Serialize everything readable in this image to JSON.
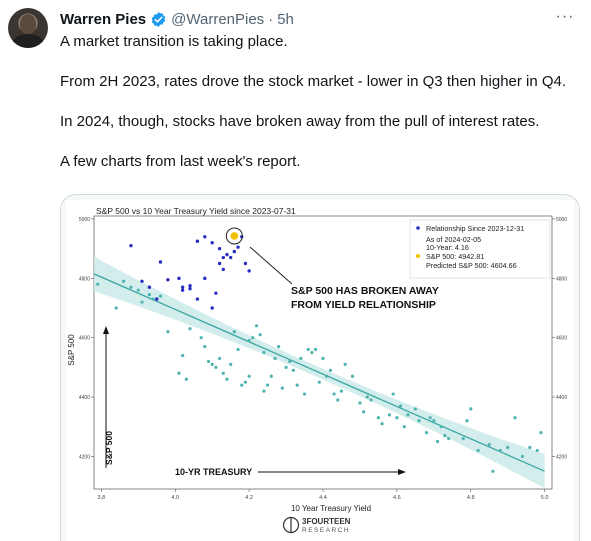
{
  "author": {
    "name": "Warren Pies",
    "handle": "@WarrenPies",
    "separator": "·",
    "time": "5h",
    "more_label": "···"
  },
  "tweet": {
    "paragraphs": [
      "A market transition is taking place.",
      "From 2H 2023, rates drove the stock market - lower in Q3 then higher in Q4.",
      "In 2024, though, stocks have broken away from the pull of interest rates.",
      "A few charts from last week's report."
    ]
  },
  "colors": {
    "verified": "#1d9bf0",
    "teal_points": "#4fb3b0",
    "navy_points": "#2a2ec0",
    "highlight": "#f2c200",
    "regression": "#3aa6a2",
    "band": "#c7e8e6"
  },
  "chart_data": {
    "type": "scatter",
    "title": "S&P 500 vs 10 Year Treasury Yield since 2023-07-31",
    "xlabel": "10 Year Treasury Yield",
    "ylabel": "S&P 500",
    "xlim": [
      3.78,
      5.02
    ],
    "ylim": [
      4090,
      5010
    ],
    "xticks": [
      "3.8",
      "4.0",
      "4.2",
      "4.4",
      "4.6",
      "4.8",
      "5.0"
    ],
    "yticks": [
      "4200",
      "4400",
      "4600",
      "4800",
      "5000"
    ],
    "yticks_right": [
      "4200",
      "4400",
      "4600",
      "4800",
      "5000"
    ],
    "grid": false,
    "legend_position": "top-right",
    "legend": {
      "series_label": "Relationship Since 2023-12-31",
      "as_of": "As of 2024-02-05",
      "ten_year": "10-Year: 4.16",
      "sp500": "S&P 500: 4942.81",
      "predicted": "Predicted S&P 500: 4604.66"
    },
    "annotation_text": [
      "S&P 500 HAS BROKEN AWAY",
      "FROM YIELD RELATIONSHIP"
    ],
    "annotation_left_axis": "S&P 500",
    "annotation_bottom_axis": "10-YR TREASURY",
    "brand_lines": [
      "3FOURTEEN",
      "RESEARCH"
    ],
    "regression": {
      "x": [
        3.78,
        5.0
      ],
      "y": [
        4815,
        4150
      ]
    },
    "highlight_point": {
      "x": 4.16,
      "y": 4942.81
    },
    "series": [
      {
        "name": "Relationship Since 2023-12-31",
        "color": "#2a2ec0",
        "points": [
          [
            3.88,
            4910
          ],
          [
            3.91,
            4790
          ],
          [
            3.93,
            4770
          ],
          [
            3.95,
            4730
          ],
          [
            3.96,
            4855
          ],
          [
            3.98,
            4795
          ],
          [
            4.01,
            4800
          ],
          [
            4.02,
            4760
          ],
          [
            4.02,
            4770
          ],
          [
            4.04,
            4775
          ],
          [
            4.04,
            4765
          ],
          [
            4.06,
            4730
          ],
          [
            4.08,
            4800
          ],
          [
            4.08,
            4940
          ],
          [
            4.1,
            4920
          ],
          [
            4.1,
            4700
          ],
          [
            4.11,
            4750
          ],
          [
            4.12,
            4850
          ],
          [
            4.13,
            4830
          ],
          [
            4.13,
            4870
          ],
          [
            4.14,
            4880
          ],
          [
            4.15,
            4870
          ],
          [
            4.16,
            4890
          ],
          [
            4.17,
            4905
          ],
          [
            4.18,
            4940
          ],
          [
            4.19,
            4850
          ],
          [
            4.2,
            4825
          ],
          [
            4.06,
            4925
          ],
          [
            4.12,
            4900
          ]
        ]
      },
      {
        "name": "Since 2023-07-31",
        "color": "#4fb3b0",
        "points": [
          [
            3.79,
            4780
          ],
          [
            3.84,
            4700
          ],
          [
            3.86,
            4790
          ],
          [
            3.88,
            4770
          ],
          [
            3.9,
            4760
          ],
          [
            3.91,
            4720
          ],
          [
            3.93,
            4745
          ],
          [
            3.94,
            4730
          ],
          [
            3.96,
            4740
          ],
          [
            3.98,
            4620
          ],
          [
            4.01,
            4480
          ],
          [
            4.02,
            4540
          ],
          [
            4.03,
            4460
          ],
          [
            4.04,
            4630
          ],
          [
            4.07,
            4600
          ],
          [
            4.08,
            4570
          ],
          [
            4.09,
            4520
          ],
          [
            4.1,
            4510
          ],
          [
            4.11,
            4500
          ],
          [
            4.12,
            4530
          ],
          [
            4.13,
            4480
          ],
          [
            4.14,
            4460
          ],
          [
            4.15,
            4510
          ],
          [
            4.16,
            4620
          ],
          [
            4.17,
            4560
          ],
          [
            4.18,
            4440
          ],
          [
            4.19,
            4450
          ],
          [
            4.2,
            4470
          ],
          [
            4.2,
            4590
          ],
          [
            4.21,
            4600
          ],
          [
            4.22,
            4640
          ],
          [
            4.23,
            4610
          ],
          [
            4.24,
            4550
          ],
          [
            4.24,
            4420
          ],
          [
            4.25,
            4440
          ],
          [
            4.26,
            4470
          ],
          [
            4.27,
            4530
          ],
          [
            4.28,
            4570
          ],
          [
            4.29,
            4430
          ],
          [
            4.3,
            4500
          ],
          [
            4.31,
            4520
          ],
          [
            4.32,
            4490
          ],
          [
            4.33,
            4440
          ],
          [
            4.34,
            4530
          ],
          [
            4.35,
            4410
          ],
          [
            4.36,
            4560
          ],
          [
            4.37,
            4550
          ],
          [
            4.38,
            4560
          ],
          [
            4.39,
            4450
          ],
          [
            4.4,
            4530
          ],
          [
            4.41,
            4470
          ],
          [
            4.42,
            4490
          ],
          [
            4.43,
            4410
          ],
          [
            4.44,
            4390
          ],
          [
            4.45,
            4420
          ],
          [
            4.46,
            4510
          ],
          [
            4.48,
            4470
          ],
          [
            4.5,
            4380
          ],
          [
            4.51,
            4350
          ],
          [
            4.52,
            4400
          ],
          [
            4.53,
            4390
          ],
          [
            4.55,
            4330
          ],
          [
            4.56,
            4310
          ],
          [
            4.58,
            4340
          ],
          [
            4.59,
            4410
          ],
          [
            4.6,
            4330
          ],
          [
            4.61,
            4370
          ],
          [
            4.62,
            4300
          ],
          [
            4.63,
            4340
          ],
          [
            4.65,
            4360
          ],
          [
            4.66,
            4320
          ],
          [
            4.68,
            4280
          ],
          [
            4.69,
            4330
          ],
          [
            4.7,
            4320
          ],
          [
            4.71,
            4250
          ],
          [
            4.72,
            4300
          ],
          [
            4.73,
            4270
          ],
          [
            4.74,
            4260
          ],
          [
            4.78,
            4260
          ],
          [
            4.79,
            4320
          ],
          [
            4.8,
            4360
          ],
          [
            4.82,
            4220
          ],
          [
            4.85,
            4240
          ],
          [
            4.86,
            4150
          ],
          [
            4.88,
            4220
          ],
          [
            4.9,
            4230
          ],
          [
            4.92,
            4330
          ],
          [
            4.94,
            4200
          ],
          [
            4.96,
            4230
          ],
          [
            4.98,
            4220
          ],
          [
            4.99,
            4280
          ]
        ]
      }
    ]
  }
}
